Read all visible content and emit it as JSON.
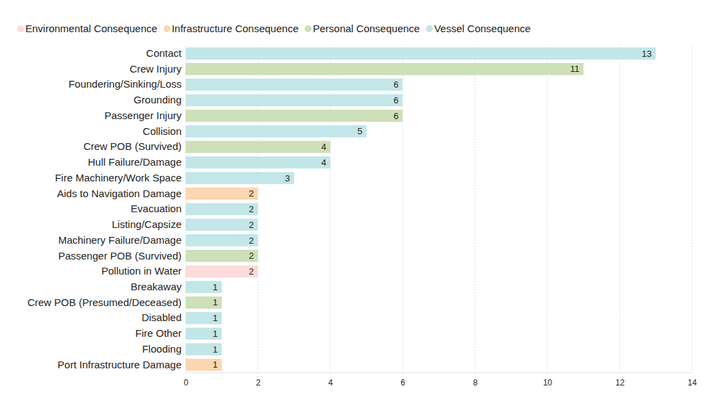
{
  "chart_data": {
    "type": "bar",
    "orientation": "horizontal",
    "stacked": true,
    "data_labels": true,
    "grid": true,
    "legend": "top-left",
    "categories": [
      "Contact",
      "Crew Injury",
      "Foundering/Sinking/Loss",
      "Grounding",
      "Passenger Injury",
      "Collision",
      "Crew POB (Survived)",
      "Hull Failure/Damage",
      "Fire Machinery/Work Space",
      "Aids to Navigation Damage",
      "Evacuation",
      "Listing/Capsize",
      "Machinery Failure/Damage",
      "Passenger POB (Survived)",
      "Pollution in Water",
      "Breakaway",
      "Crew POB (Presumed/Deceased)",
      "Disabled",
      "Fire Other",
      "Flooding",
      "Port Infrastructure Damage"
    ],
    "series": [
      {
        "name": "Environmental Consequence",
        "color": "#fbdcda",
        "values": [
          null,
          null,
          null,
          null,
          null,
          null,
          null,
          null,
          null,
          null,
          null,
          null,
          null,
          null,
          2,
          null,
          null,
          null,
          null,
          null,
          null
        ]
      },
      {
        "name": "Infrastructure Consequence",
        "color": "#fbd6b2",
        "values": [
          null,
          null,
          null,
          null,
          null,
          null,
          null,
          null,
          null,
          2,
          null,
          null,
          null,
          null,
          null,
          null,
          null,
          null,
          null,
          null,
          1
        ]
      },
      {
        "name": "Personal Consequence",
        "color": "#cde0b9",
        "values": [
          null,
          11,
          null,
          null,
          6,
          null,
          4,
          null,
          null,
          null,
          null,
          null,
          null,
          2,
          null,
          null,
          1,
          null,
          null,
          null,
          null
        ]
      },
      {
        "name": "Vessel Consequence",
        "color": "#c3e6e8",
        "values": [
          13,
          null,
          6,
          6,
          null,
          5,
          null,
          4,
          3,
          null,
          2,
          2,
          2,
          null,
          null,
          1,
          null,
          1,
          1,
          1,
          null
        ]
      }
    ],
    "xlim": [
      0,
      14
    ],
    "xticks": [
      0,
      2,
      4,
      6,
      8,
      10,
      12,
      14
    ]
  }
}
